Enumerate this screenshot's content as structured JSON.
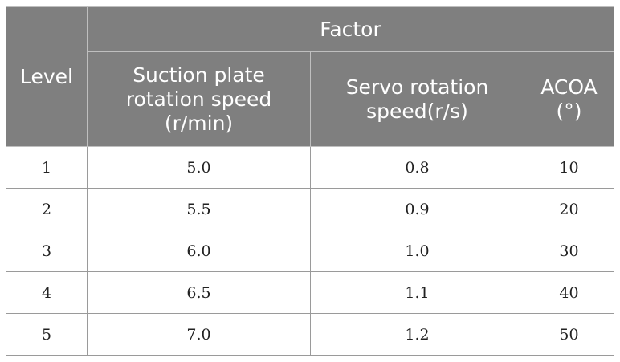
{
  "table": {
    "header": {
      "level": "Level",
      "factor": "Factor",
      "columns": [
        "Suction plate rotation speed (r/min)",
        "Servo rotation speed(r/s)",
        "ACOA (°)"
      ]
    },
    "rows": [
      {
        "level": "1",
        "suction": "5.0",
        "servo": "0.8",
        "acoa": "10"
      },
      {
        "level": "2",
        "suction": "5.5",
        "servo": "0.9",
        "acoa": "20"
      },
      {
        "level": "3",
        "suction": "6.0",
        "servo": "1.0",
        "acoa": "30"
      },
      {
        "level": "4",
        "suction": "6.5",
        "servo": "1.1",
        "acoa": "40"
      },
      {
        "level": "5",
        "suction": "7.0",
        "servo": "1.2",
        "acoa": "50"
      }
    ]
  }
}
